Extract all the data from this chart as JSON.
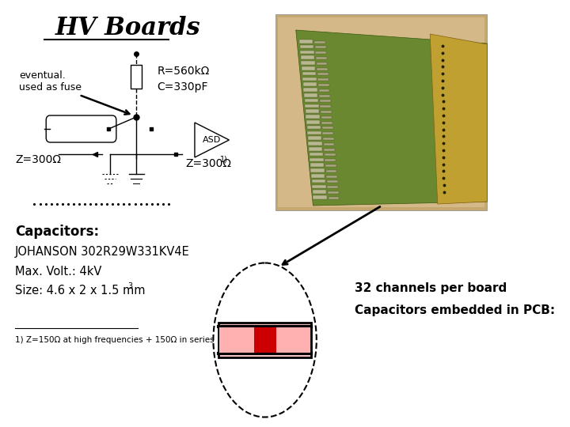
{
  "title": "HV Boards",
  "bg_color": "#ffffff",
  "eventual_text": "eventual.\nused as fuse",
  "R_label": "R=560kΩ",
  "C_label": "C=330pF",
  "Z_left_label": "Z=300Ω",
  "Z_right_label": "Z=300Ω",
  "Z_right_super": "1)",
  "ASD_label": "ASD",
  "cap_title": "Capacitors:",
  "cap_model": "JOHANSON 302R29W331KV4E",
  "cap_volt": "Max. Volt.: 4kV",
  "cap_size": "Size: 4.6 x 2 x 1.5 mm",
  "cap_size_super": "3",
  "channels_text": "32 channels per board",
  "embedded_text": "Capacitors embedded in PCB:",
  "footnote": "1) Z=150Ω at high frequencies + 150Ω in series",
  "photo_bg": "#c8b090",
  "photo_tan": "#c4a870",
  "photo_green": "#6a8830",
  "photo_gold": "#c0a030",
  "photo_cap_color": "#b8b890",
  "photo_dark": "#303820"
}
